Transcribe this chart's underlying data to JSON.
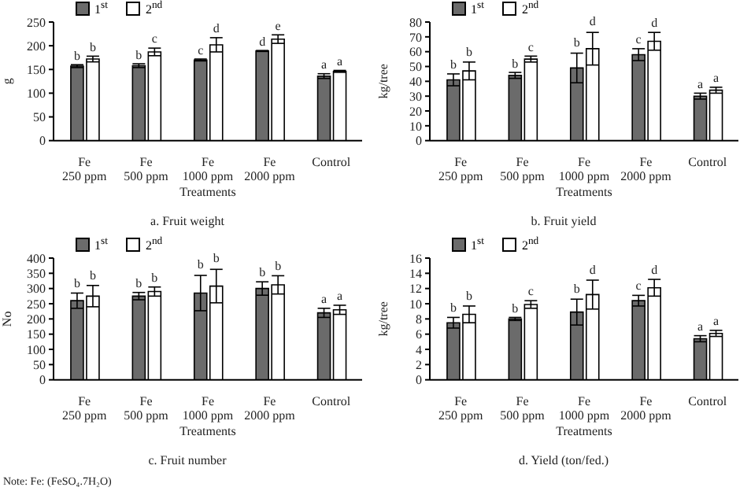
{
  "chart_data": [
    {
      "type": "bar",
      "title": "a. Fruit weight",
      "xlabel": "Treatments",
      "ylabel": "g",
      "categories": [
        "Fe 250 ppm",
        "Fe 500 ppm",
        "Fe 1000 ppm",
        "Fe 2000 ppm",
        "Control"
      ],
      "ylim": [
        0,
        250
      ],
      "yticks": [
        0,
        50,
        100,
        150,
        200,
        250
      ],
      "legend": "top left",
      "series": [
        {
          "name": "1$^{st}$",
          "color": "#6b6b6b",
          "values": [
            157,
            158,
            170,
            189,
            136
          ],
          "errors": [
            3,
            4,
            2,
            1,
            5
          ],
          "value_labels": [
            "b",
            "b",
            "c",
            "d",
            "a"
          ]
        },
        {
          "name": "2$^{nd}$",
          "color": "#ffffff",
          "values": [
            172,
            187,
            202,
            214,
            146
          ],
          "errors": [
            6,
            8,
            15,
            9,
            2
          ],
          "value_labels": [
            "b",
            "c",
            "d",
            "e",
            "a"
          ]
        }
      ]
    },
    {
      "type": "bar",
      "title": "b. Fruit yield",
      "xlabel": "Treatments",
      "ylabel": "kg/tree",
      "categories": [
        "Fe 250 ppm",
        "Fe 500 ppm",
        "Fe 1000 ppm",
        "Fe 2000 ppm",
        "Control"
      ],
      "ylim": [
        0,
        80
      ],
      "yticks": [
        0,
        10,
        20,
        30,
        40,
        50,
        60,
        70,
        80
      ],
      "legend": "top left",
      "series": [
        {
          "name": "1$^{st}$",
          "color": "#6b6b6b",
          "values": [
            41,
            44,
            49,
            58,
            30
          ],
          "errors": [
            4,
            2,
            10,
            4,
            2
          ],
          "value_labels": [
            "b",
            "b",
            "b",
            "c",
            "a"
          ]
        },
        {
          "name": "2$^{nd}$",
          "color": "#ffffff",
          "values": [
            47,
            55,
            62,
            67,
            34
          ],
          "errors": [
            6,
            2,
            11,
            6,
            2
          ],
          "value_labels": [
            "b",
            "c",
            "d",
            "d",
            "a"
          ]
        }
      ]
    },
    {
      "type": "bar",
      "title": "c. Fruit number",
      "xlabel": "Treatments",
      "ylabel": "No",
      "annotations": [
        "Note: Fe: (FeSO₄.7H₂O)"
      ],
      "categories": [
        "Fe 250 ppm",
        "Fe 500 ppm",
        "Fe 1000 ppm",
        "Fe 2000 ppm",
        "Control"
      ],
      "ylim": [
        0,
        400
      ],
      "yticks": [
        0,
        50,
        100,
        150,
        200,
        250,
        300,
        350,
        400
      ],
      "legend": "top left",
      "series": [
        {
          "name": "1$^{st}$",
          "color": "#6b6b6b",
          "values": [
            260,
            275,
            285,
            300,
            220
          ],
          "errors": [
            25,
            12,
            58,
            22,
            15
          ],
          "value_labels": [
            "b",
            "b",
            "b",
            "b",
            "a"
          ]
        },
        {
          "name": "2$^{nd}$",
          "color": "#ffffff",
          "values": [
            275,
            290,
            308,
            312,
            230
          ],
          "errors": [
            35,
            15,
            55,
            30,
            15
          ],
          "value_labels": [
            "b",
            "b",
            "b",
            "b",
            "a"
          ]
        }
      ]
    },
    {
      "type": "bar",
      "title": "d. Yield (ton/fed.)",
      "xlabel": "Treatments",
      "ylabel": "kg/tree",
      "categories": [
        "Fe 250 ppm",
        "Fe 500 ppm",
        "Fe 1000 ppm",
        "Fe 2000 ppm",
        "Control"
      ],
      "ylim": [
        0,
        16
      ],
      "yticks": [
        0,
        2,
        4,
        6,
        8,
        10,
        12,
        14,
        16
      ],
      "legend": "top left",
      "series": [
        {
          "name": "1$^{st}$",
          "color": "#6b6b6b",
          "values": [
            7.5,
            8.0,
            8.9,
            10.4,
            5.4
          ],
          "errors": [
            0.7,
            0.2,
            1.7,
            0.7,
            0.4
          ],
          "value_labels": [
            "b",
            "b",
            "b",
            "c",
            "a"
          ]
        },
        {
          "name": "2$^{nd}$",
          "color": "#ffffff",
          "values": [
            8.6,
            9.9,
            11.2,
            12.1,
            6.1
          ],
          "errors": [
            1.1,
            0.5,
            1.9,
            1.1,
            0.4
          ],
          "value_labels": [
            "b",
            "c",
            "d",
            "d",
            "a"
          ]
        }
      ]
    }
  ]
}
